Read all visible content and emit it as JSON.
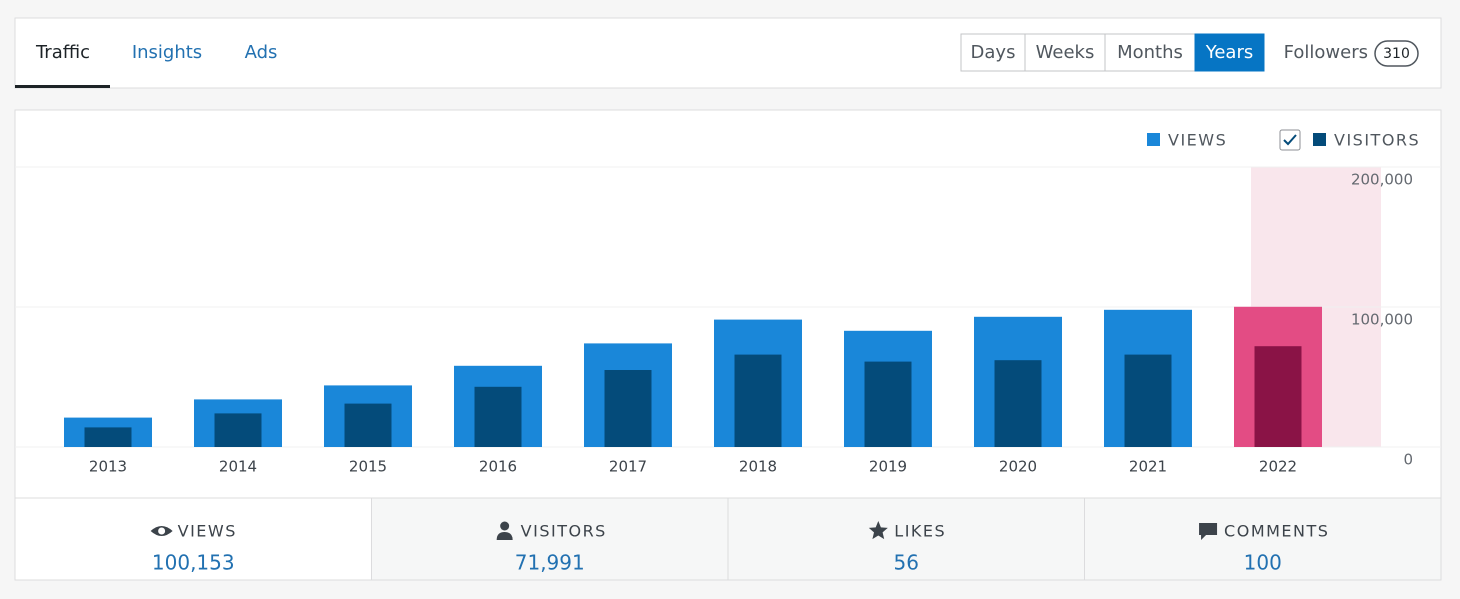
{
  "tabs": [
    "Traffic",
    "Insights",
    "Ads"
  ],
  "periods": [
    "Days",
    "Weeks",
    "Months",
    "Years"
  ],
  "followers": {
    "label": "Followers",
    "count": 310
  },
  "chart_data": {
    "type": "bar",
    "categories": [
      "2013",
      "2014",
      "2015",
      "2016",
      "2017",
      "2018",
      "2019",
      "2020",
      "2021",
      "2022"
    ],
    "series": [
      {
        "name": "VIEWS",
        "color": "#1a87d9",
        "highlight_color": "#e34c84",
        "values": [
          21000,
          34000,
          44000,
          58000,
          74000,
          91000,
          83000,
          93000,
          98000,
          100153
        ]
      },
      {
        "name": "VISITORS",
        "color": "#044b7a",
        "highlight_color": "#8a1346",
        "values": [
          14000,
          24000,
          31000,
          43000,
          55000,
          66000,
          61000,
          62000,
          66000,
          71991
        ]
      }
    ],
    "ylim": [
      0,
      200000
    ],
    "yticks": [
      0,
      {
        "value": 100000,
        "label": "100,000"
      },
      {
        "value": 200000,
        "label": "200,000"
      }
    ],
    "grid": true,
    "selected": "2022",
    "selected_band_color": "#f9e6ec"
  },
  "stats": [
    {
      "label": "VIEWS",
      "value": "100,153"
    },
    {
      "label": "VISITORS",
      "value": "71,991"
    },
    {
      "label": "LIKES",
      "value": "56"
    },
    {
      "label": "COMMENTS",
      "value": "100"
    }
  ]
}
